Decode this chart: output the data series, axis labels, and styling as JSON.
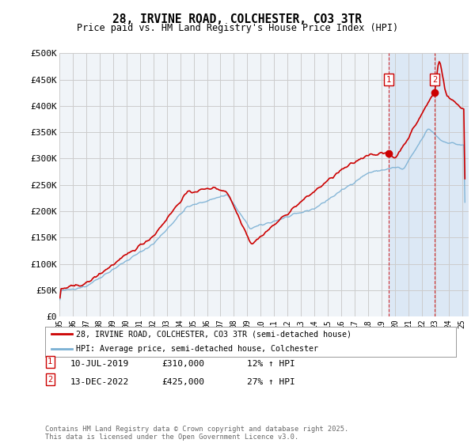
{
  "title": "28, IRVINE ROAD, COLCHESTER, CO3 3TR",
  "subtitle": "Price paid vs. HM Land Registry's House Price Index (HPI)",
  "ylim": [
    0,
    500000
  ],
  "yticks": [
    0,
    50000,
    100000,
    150000,
    200000,
    250000,
    300000,
    350000,
    400000,
    450000,
    500000
  ],
  "ytick_labels": [
    "£0",
    "£50K",
    "£100K",
    "£150K",
    "£200K",
    "£250K",
    "£300K",
    "£350K",
    "£400K",
    "£450K",
    "£500K"
  ],
  "xlim_start": 1995.0,
  "xlim_end": 2025.5,
  "background_color": "#ffffff",
  "plot_bg_color": "#f0f4f8",
  "grid_color": "#cccccc",
  "line_red_color": "#cc0000",
  "line_blue_color": "#7ab0d4",
  "highlight_bg_color": "#dce8f5",
  "sale1_x": 2019.53,
  "sale1_y": 310000,
  "sale2_x": 2022.95,
  "sale2_y": 425000,
  "sale1_date": "10-JUL-2019",
  "sale1_price": "£310,000",
  "sale1_hpi": "12% ↑ HPI",
  "sale2_date": "13-DEC-2022",
  "sale2_price": "£425,000",
  "sale2_hpi": "27% ↑ HPI",
  "legend_line1": "28, IRVINE ROAD, COLCHESTER, CO3 3TR (semi-detached house)",
  "legend_line2": "HPI: Average price, semi-detached house, Colchester",
  "footnote": "Contains HM Land Registry data © Crown copyright and database right 2025.\nThis data is licensed under the Open Government Licence v3.0."
}
